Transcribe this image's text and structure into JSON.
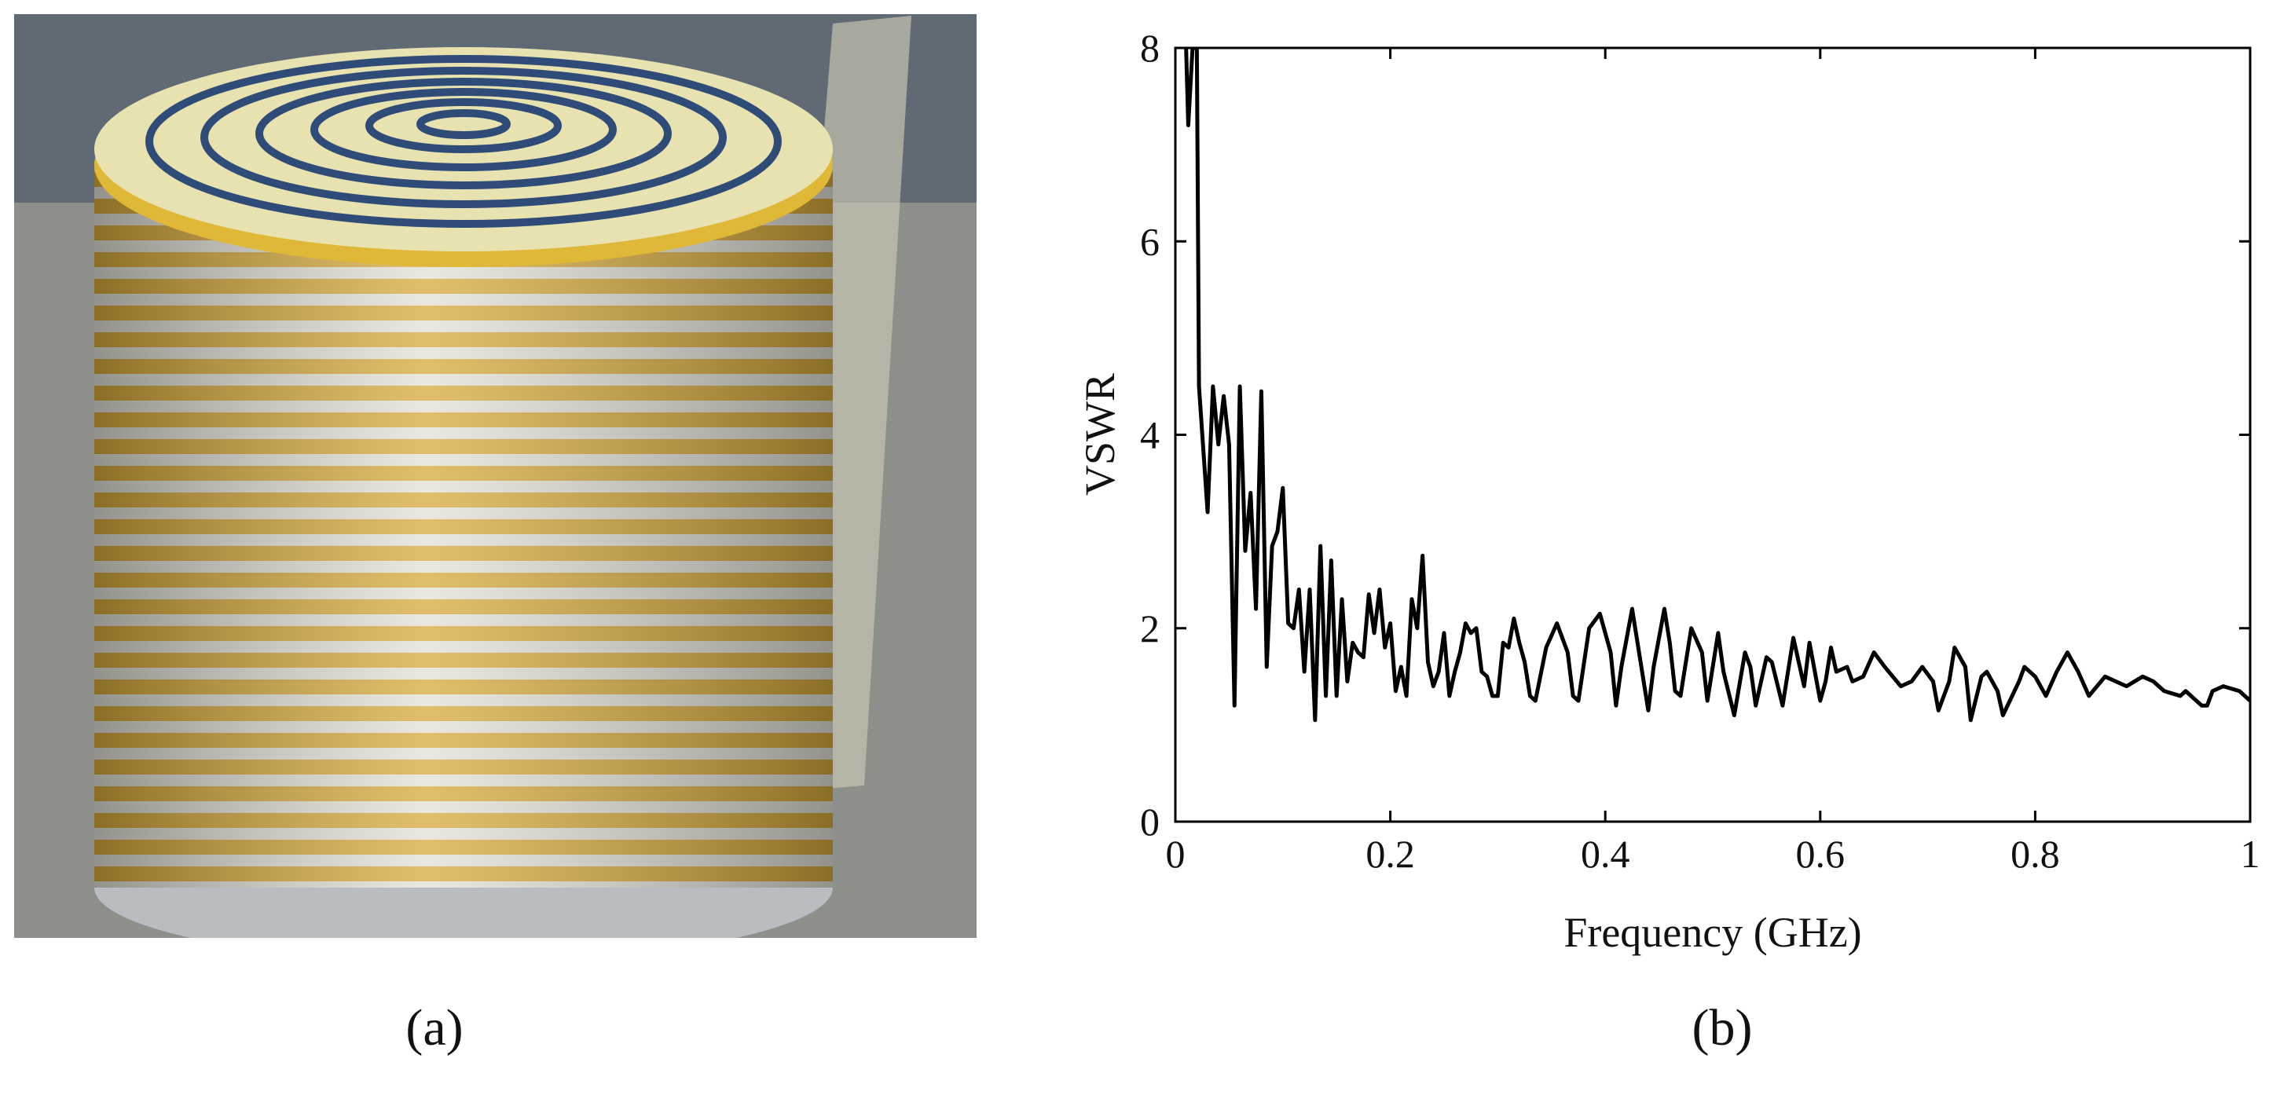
{
  "panel_labels": [
    "(a)",
    "(b)"
  ],
  "chart_data": {
    "type": "line",
    "xlabel": "Frequency (GHz)",
    "ylabel": "VSWR",
    "x": [
      0.01,
      0.012,
      0.016,
      0.02,
      0.022,
      0.03,
      0.035,
      0.04,
      0.045,
      0.05,
      0.055,
      0.06,
      0.065,
      0.07,
      0.075,
      0.08,
      0.085,
      0.09,
      0.095,
      0.1,
      0.105,
      0.11,
      0.115,
      0.12,
      0.125,
      0.13,
      0.135,
      0.14,
      0.145,
      0.15,
      0.155,
      0.16,
      0.165,
      0.17,
      0.175,
      0.18,
      0.185,
      0.19,
      0.195,
      0.2,
      0.205,
      0.21,
      0.215,
      0.22,
      0.225,
      0.23,
      0.235,
      0.24,
      0.245,
      0.25,
      0.255,
      0.26,
      0.265,
      0.27,
      0.275,
      0.28,
      0.285,
      0.29,
      0.295,
      0.3,
      0.305,
      0.31,
      0.315,
      0.32,
      0.325,
      0.33,
      0.335,
      0.345,
      0.355,
      0.365,
      0.37,
      0.375,
      0.385,
      0.395,
      0.405,
      0.41,
      0.415,
      0.425,
      0.43,
      0.44,
      0.445,
      0.455,
      0.46,
      0.465,
      0.47,
      0.48,
      0.49,
      0.495,
      0.505,
      0.51,
      0.52,
      0.53,
      0.535,
      0.54,
      0.55,
      0.555,
      0.565,
      0.575,
      0.585,
      0.59,
      0.6,
      0.605,
      0.61,
      0.615,
      0.625,
      0.63,
      0.64,
      0.65,
      0.66,
      0.675,
      0.685,
      0.695,
      0.705,
      0.71,
      0.72,
      0.725,
      0.735,
      0.74,
      0.75,
      0.755,
      0.765,
      0.77,
      0.785,
      0.79,
      0.8,
      0.81,
      0.82,
      0.83,
      0.84,
      0.85,
      0.865,
      0.875,
      0.885,
      0.9,
      0.91,
      0.92,
      0.935,
      0.94,
      0.955,
      0.96,
      0.965,
      0.975,
      0.99,
      1.0
    ],
    "series": [
      {
        "name": "VSWR",
        "color": "#000000",
        "values": [
          8,
          7.2,
          8,
          8,
          4.5,
          3.2,
          4.5,
          3.9,
          4.4,
          3.9,
          1.2,
          4.5,
          2.8,
          3.4,
          2.2,
          4.45,
          1.6,
          2.85,
          3.0,
          3.45,
          2.05,
          2.0,
          2.4,
          1.55,
          2.4,
          1.05,
          2.85,
          1.3,
          2.7,
          1.3,
          2.3,
          1.45,
          1.85,
          1.75,
          1.7,
          2.35,
          1.95,
          2.4,
          1.8,
          2.05,
          1.35,
          1.6,
          1.3,
          2.3,
          2.0,
          2.75,
          1.65,
          1.4,
          1.55,
          1.95,
          1.3,
          1.55,
          1.75,
          2.05,
          1.95,
          2.0,
          1.55,
          1.5,
          1.3,
          1.3,
          1.85,
          1.8,
          2.1,
          1.85,
          1.65,
          1.3,
          1.25,
          1.8,
          2.05,
          1.75,
          1.3,
          1.25,
          2.0,
          2.15,
          1.75,
          1.2,
          1.6,
          2.2,
          1.85,
          1.15,
          1.6,
          2.2,
          1.85,
          1.35,
          1.3,
          2.0,
          1.75,
          1.25,
          1.95,
          1.55,
          1.1,
          1.75,
          1.6,
          1.2,
          1.7,
          1.65,
          1.2,
          1.9,
          1.4,
          1.85,
          1.25,
          1.45,
          1.8,
          1.55,
          1.6,
          1.45,
          1.5,
          1.75,
          1.6,
          1.4,
          1.45,
          1.6,
          1.45,
          1.15,
          1.45,
          1.8,
          1.6,
          1.05,
          1.5,
          1.55,
          1.35,
          1.1,
          1.45,
          1.6,
          1.5,
          1.3,
          1.55,
          1.75,
          1.55,
          1.3,
          1.5,
          1.45,
          1.4,
          1.5,
          1.45,
          1.35,
          1.3,
          1.35,
          1.2,
          1.2,
          1.35,
          1.4,
          1.35,
          1.25
        ]
      }
    ],
    "xlim": [
      0,
      1
    ],
    "ylim": [
      0,
      8
    ],
    "xticks": [
      0,
      0.2,
      0.4,
      0.6,
      0.8,
      1
    ],
    "yticks": [
      0,
      2,
      4,
      6,
      8
    ]
  }
}
